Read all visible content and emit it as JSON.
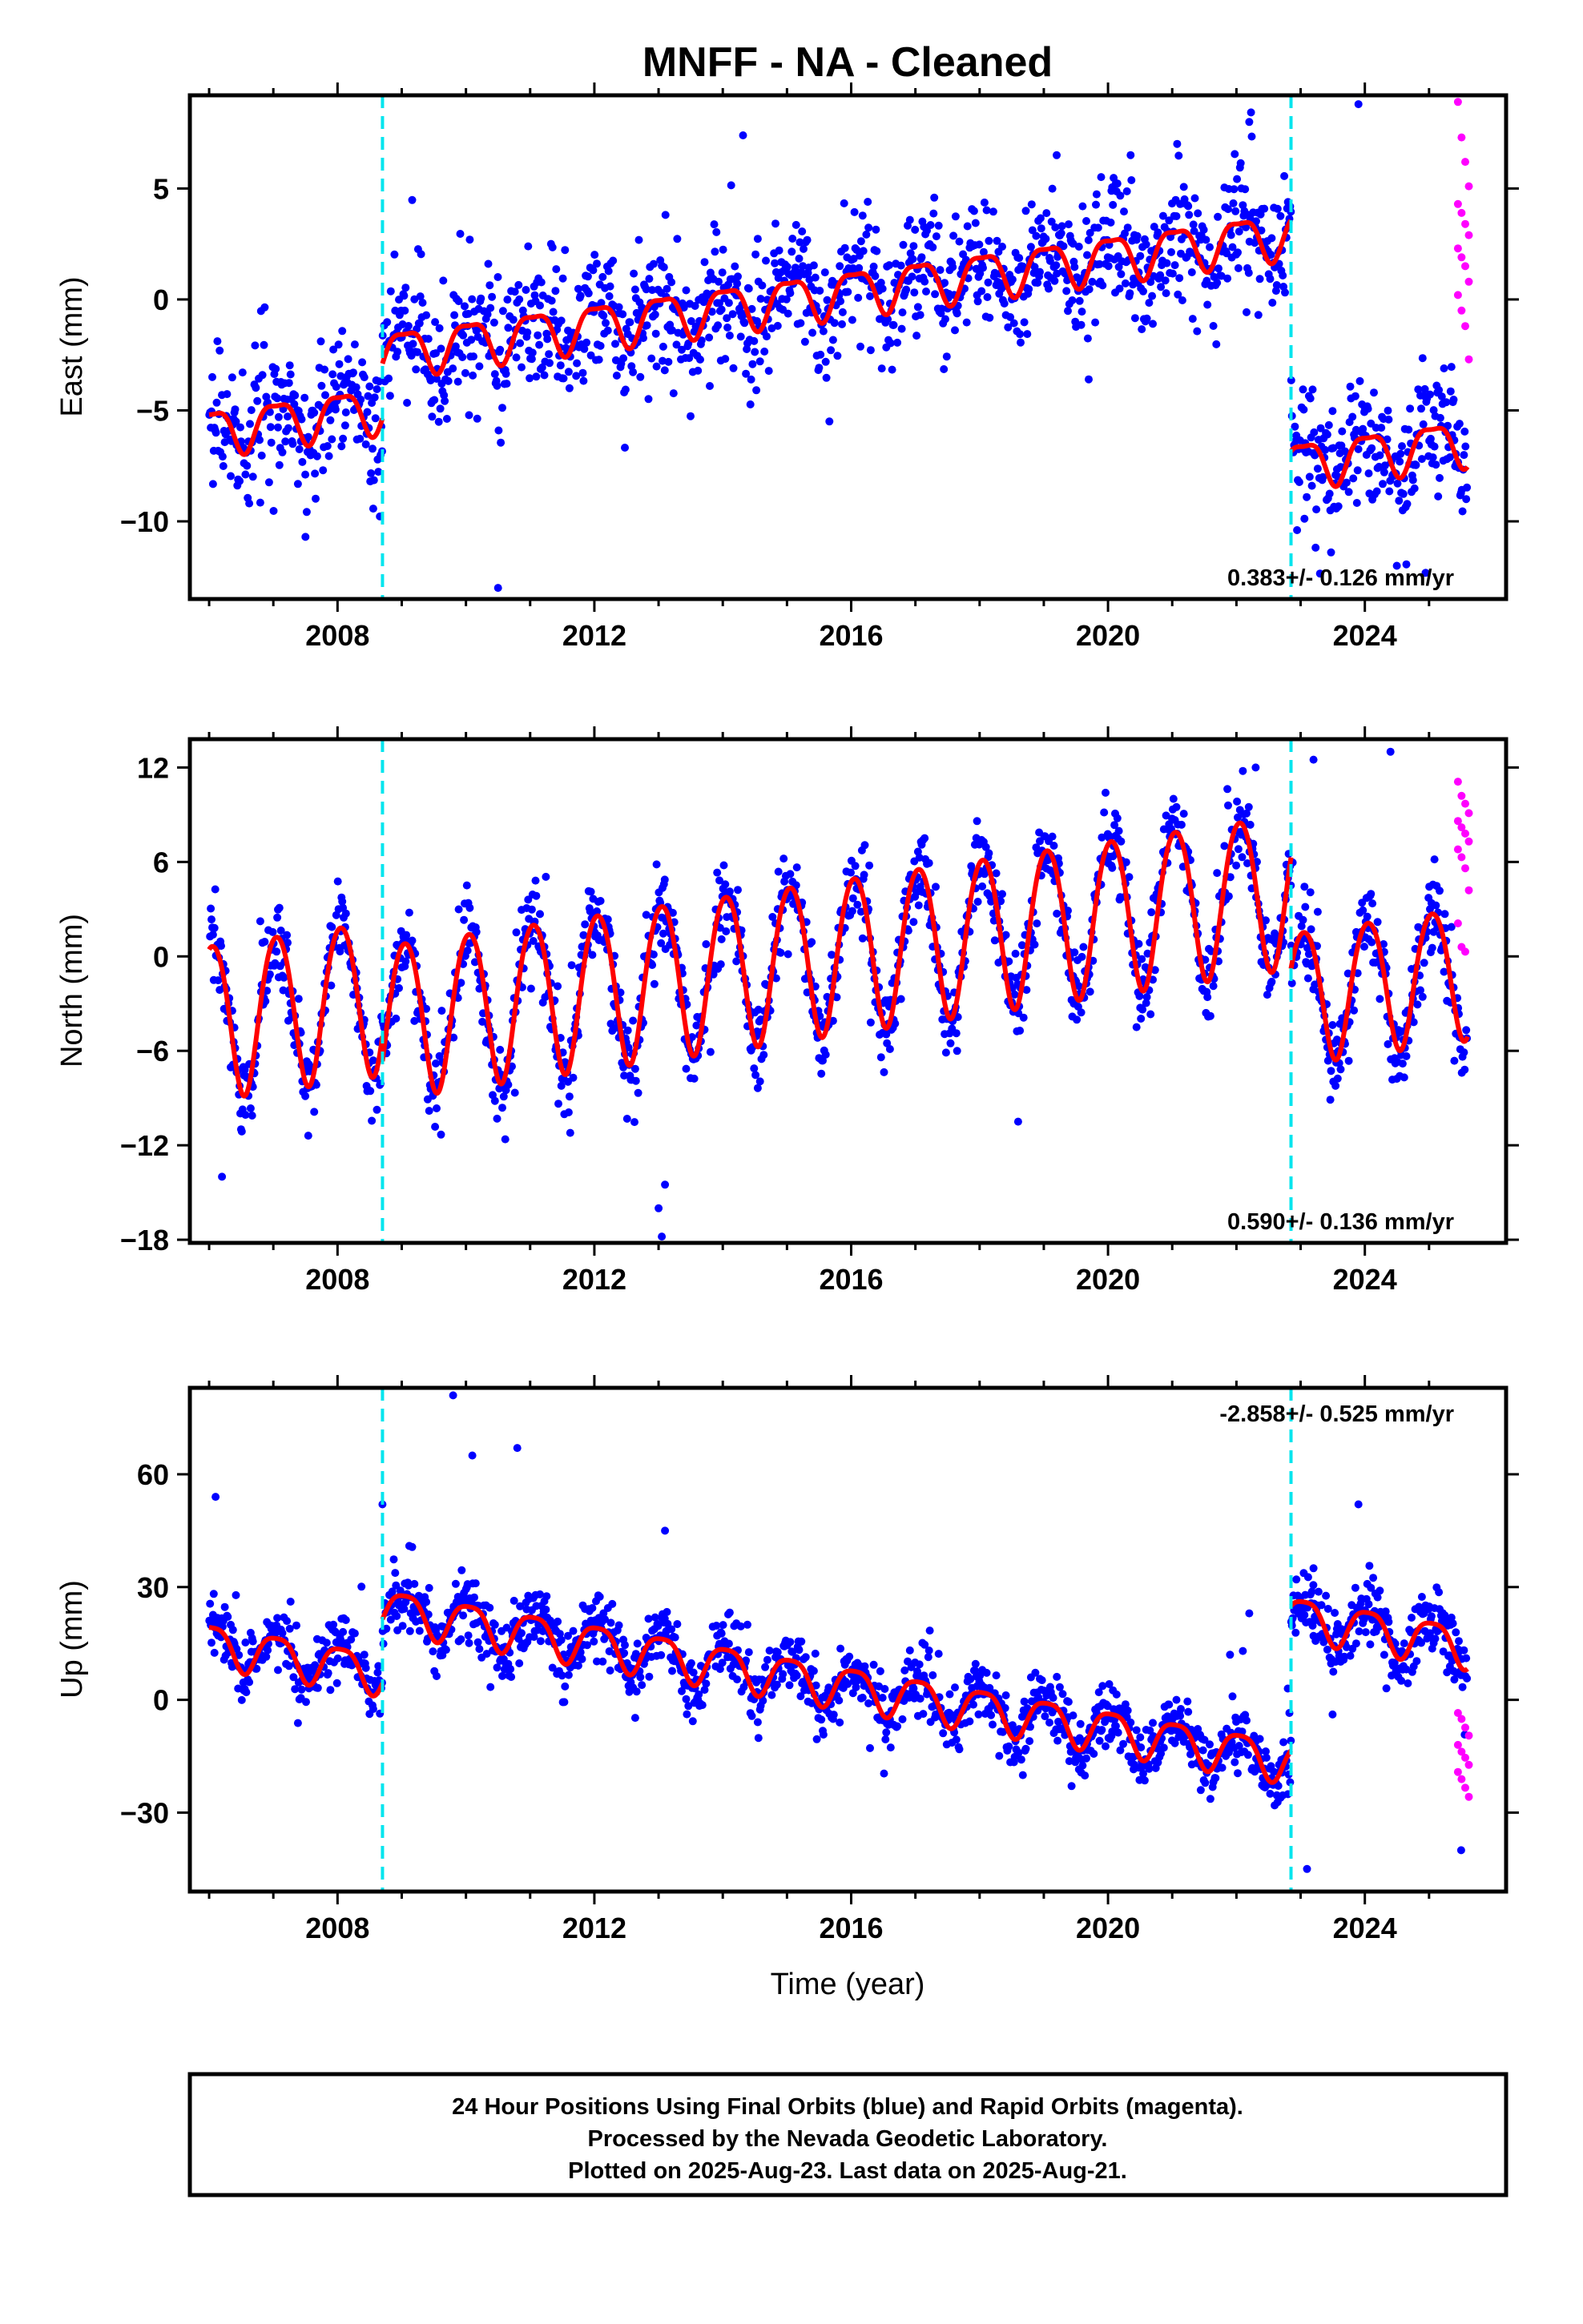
{
  "title": "MNFF  - NA - Cleaned",
  "colors": {
    "final_orbits": "#0000ff",
    "rapid_orbits": "#ff00ff",
    "model": "#ff0000",
    "offsets": "#00e5ee",
    "frame": "#000000"
  },
  "footer": {
    "line1": "24 Hour Positions Using Final Orbits (blue) and Rapid Orbits (magenta).",
    "line2": "Processed by the Nevada Geodetic Laboratory.",
    "line3": "Plotted on 2025-Aug-23. Last data on 2025-Aug-21."
  },
  "chart_data": [
    {
      "type": "scatter",
      "panel": "east",
      "ylabel": "East (mm)",
      "xlabel": "",
      "xlim": [
        2005.7,
        2026.2
      ],
      "ylim": [
        -13.5,
        9.2
      ],
      "xticks": [
        2008,
        2012,
        2016,
        2020,
        2024
      ],
      "yticks": [
        -10,
        -5,
        0,
        5
      ],
      "ytick_labels": [
        "−10",
        "−5",
        "0",
        "5"
      ],
      "rate_label": "0.383+/- 0.126 mm/yr",
      "rate_position": "bottom-right",
      "offsets": [
        2008.7,
        2022.85
      ],
      "model_segments": [
        {
          "x_start": 2006.0,
          "x_end": 2008.7,
          "intercept": -5.9,
          "slope": 0.383,
          "annual_amp": 1.0,
          "semiannual_amp": 0.3
        },
        {
          "x_start": 2008.7,
          "x_end": 2022.85,
          "intercept": -2.4,
          "slope": 0.383,
          "annual_amp": 1.0,
          "semiannual_amp": 0.3
        },
        {
          "x_start": 2022.85,
          "x_end": 2025.6,
          "intercept": -7.4,
          "slope": 0.383,
          "annual_amp": 1.0,
          "semiannual_amp": 0.3
        }
      ],
      "scatter_sd": 1.4,
      "outliers": [
        [
          2010.5,
          -13.0
        ],
        [
          2023.9,
          8.8
        ],
        [
          2019.7,
          -3.6
        ],
        [
          2007.5,
          -10.7
        ],
        [
          2022.2,
          8.0
        ],
        [
          2019.2,
          6.5
        ]
      ],
      "rapid_orbits": {
        "x_start": 2025.45,
        "x_end": 2025.62,
        "y": [
          8.9,
          7.3,
          6.2,
          5.1,
          4.3,
          3.9,
          3.4,
          2.9,
          2.3,
          1.9,
          1.5,
          0.8,
          0.2,
          -0.5,
          -1.2,
          -2.7
        ]
      }
    },
    {
      "type": "scatter",
      "panel": "north",
      "ylabel": "North (mm)",
      "xlabel": "",
      "xlim": [
        2005.7,
        2026.2
      ],
      "ylim": [
        -18.2,
        13.8
      ],
      "xticks": [
        2008,
        2012,
        2016,
        2020,
        2024
      ],
      "yticks": [
        -18,
        -12,
        -6,
        0,
        6,
        12
      ],
      "ytick_labels": [
        "−18",
        "−12",
        "−6",
        "0",
        "6",
        "12"
      ],
      "rate_label": "0.590+/- 0.136 mm/yr",
      "rate_position": "bottom-right",
      "offsets": [
        2008.7,
        2022.85
      ],
      "model_segments": [
        {
          "x_start": 2006.0,
          "x_end": 2008.7,
          "intercept": -3.9,
          "slope": 0.59,
          "annual_amp": 4.9,
          "semiannual_amp": 0.4
        },
        {
          "x_start": 2008.7,
          "x_end": 2022.85,
          "intercept": -3.9,
          "slope": 0.59,
          "annual_amp": 4.9,
          "semiannual_amp": 0.4
        },
        {
          "x_start": 2022.85,
          "x_end": 2025.6,
          "intercept": -2.4,
          "slope": 0.59,
          "annual_amp": 4.2,
          "semiannual_amp": 0.4
        }
      ],
      "scatter_sd": 1.3,
      "outliers": [
        [
          2013.05,
          -17.8
        ],
        [
          2013.0,
          -16.0
        ],
        [
          2013.1,
          -14.5
        ],
        [
          2006.2,
          -14.0
        ],
        [
          2024.4,
          13.0
        ],
        [
          2023.2,
          12.5
        ],
        [
          2018.6,
          -10.5
        ],
        [
          2022.3,
          12.0
        ]
      ],
      "rapid_orbits": {
        "x_start": 2025.45,
        "x_end": 2025.62,
        "y": [
          11.1,
          10.2,
          9.7,
          9.1,
          8.6,
          8.2,
          7.8,
          7.3,
          6.8,
          6.3,
          5.6,
          4.2,
          2.1,
          0.6,
          0.3
        ]
      }
    },
    {
      "type": "scatter",
      "panel": "up",
      "ylabel": "Up (mm)",
      "xlabel": "Time (year)",
      "xlim": [
        2005.7,
        2026.2
      ],
      "ylim": [
        -51,
        83
      ],
      "xticks": [
        2008,
        2012,
        2016,
        2020,
        2024
      ],
      "yticks": [
        -30,
        0,
        30,
        60
      ],
      "ytick_labels": [
        "−30",
        "0",
        "30",
        "60"
      ],
      "rate_label": "-2.858+/- 0.525 mm/yr",
      "rate_position": "top-right",
      "offsets": [
        2008.7,
        2022.85
      ],
      "model_segments": [
        {
          "x_start": 2006.0,
          "x_end": 2008.7,
          "intercept": 15.0,
          "slope": -2.858,
          "annual_amp": 5.5,
          "semiannual_amp": 1.2
        },
        {
          "x_start": 2008.7,
          "x_end": 2022.85,
          "intercept": 24.3,
          "slope": -2.858,
          "annual_amp": 5.5,
          "semiannual_amp": 1.2
        },
        {
          "x_start": 2022.85,
          "x_end": 2025.6,
          "intercept": 22.3,
          "slope": -2.858,
          "annual_amp": 5.5,
          "semiannual_amp": 1.2
        }
      ],
      "scatter_sd": 4.2,
      "outliers": [
        [
          2009.8,
          81.0
        ],
        [
          2010.1,
          65.0
        ],
        [
          2010.8,
          67.0
        ],
        [
          2006.1,
          54.0
        ],
        [
          2008.7,
          52.0
        ],
        [
          2023.9,
          52.0
        ],
        [
          2013.1,
          45.0
        ],
        [
          2023.2,
          35.0
        ],
        [
          2023.2,
          17.0
        ],
        [
          2025.2,
          21.0
        ],
        [
          2022.2,
          23.0
        ],
        [
          2022.1,
          13.0
        ],
        [
          2021.9,
          12.0
        ],
        [
          2022.8,
          3.0
        ],
        [
          2023.1,
          -45.0
        ],
        [
          2025.5,
          -40.0
        ]
      ],
      "rapid_orbits": {
        "x_start": 2025.45,
        "x_end": 2025.62,
        "y": [
          -3.5,
          -5.1,
          -7.4,
          -9.5,
          -12.0,
          -13.8,
          -15.4,
          -17.3,
          -19.2,
          -21.1,
          -23.4,
          -25.8
        ]
      }
    }
  ]
}
